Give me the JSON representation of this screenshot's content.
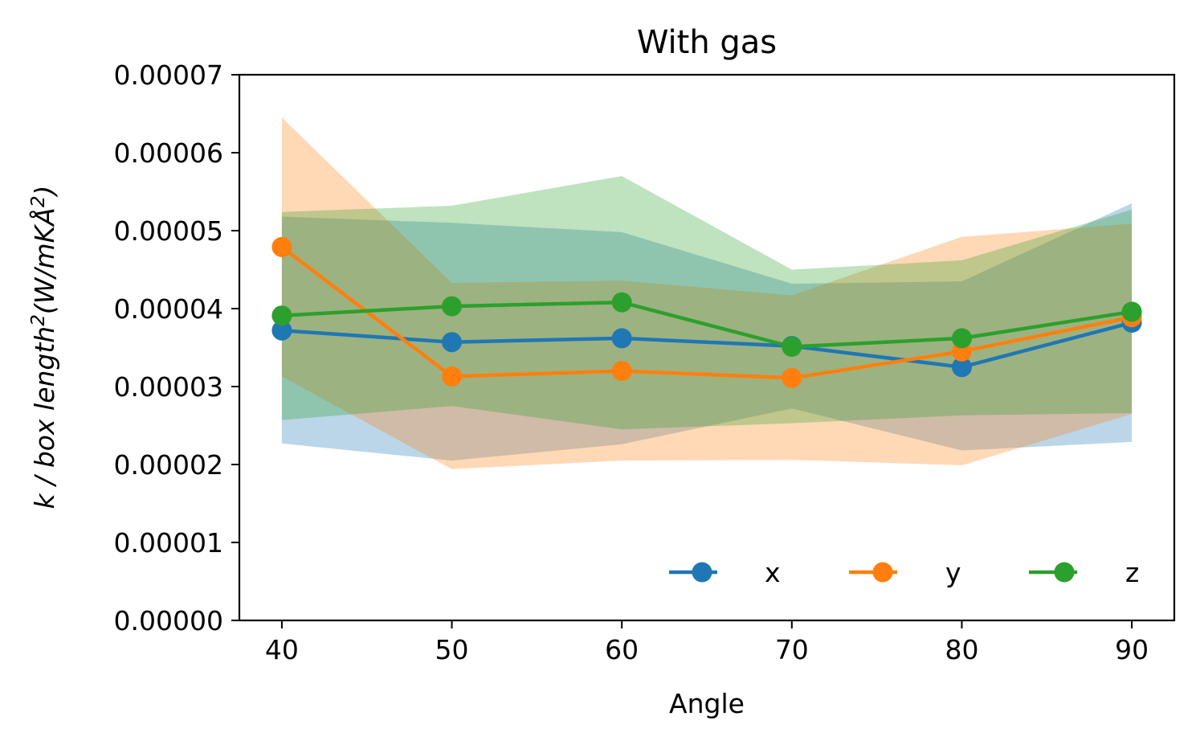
{
  "chart_data": {
    "type": "line",
    "title": "With gas",
    "xlabel": "Angle",
    "ylabel": "k / box length",
    "ylabel_superscript": "2",
    "ylabel_unit": "(W/mKÅ",
    "ylabel_unit_superscript": "2",
    "ylabel_unit_close": ")",
    "x": [
      40,
      50,
      60,
      70,
      80,
      90
    ],
    "xlim": [
      37.5,
      92.5
    ],
    "ylim": [
      0,
      7e-05
    ],
    "xticks": [
      40,
      50,
      60,
      70,
      80,
      90
    ],
    "yticks": [
      0,
      1e-05,
      2e-05,
      3e-05,
      4e-05,
      5e-05,
      6e-05,
      7e-05
    ],
    "ytick_labels": [
      "0.00000",
      "0.00001",
      "0.00002",
      "0.00003",
      "0.00004",
      "0.00005",
      "0.00006",
      "0.00007"
    ],
    "xtick_labels": [
      "40",
      "50",
      "60",
      "70",
      "80",
      "90"
    ],
    "grid": false,
    "legend_position": "lower-right",
    "legend_columns": 3,
    "series": [
      {
        "name": "x",
        "color": "#1f77b4",
        "values": [
          3.72e-05,
          3.57e-05,
          3.62e-05,
          3.52e-05,
          3.25e-05,
          3.82e-05
        ],
        "band_upper": [
          5.18e-05,
          5.1e-05,
          4.98e-05,
          4.32e-05,
          4.35e-05,
          5.35e-05
        ],
        "band_lower": [
          2.27e-05,
          2.05e-05,
          2.26e-05,
          2.72e-05,
          2.18e-05,
          2.29e-05
        ]
      },
      {
        "name": "y",
        "color": "#ff7f0e",
        "values": [
          4.79e-05,
          3.13e-05,
          3.2e-05,
          3.11e-05,
          3.45e-05,
          3.89e-05
        ],
        "band_upper": [
          6.45e-05,
          4.33e-05,
          4.36e-05,
          4.17e-05,
          4.92e-05,
          5.09e-05
        ],
        "band_lower": [
          3.13e-05,
          1.94e-05,
          2.05e-05,
          2.06e-05,
          1.99e-05,
          2.65e-05
        ]
      },
      {
        "name": "z",
        "color": "#2ca02c",
        "values": [
          3.91e-05,
          4.03e-05,
          4.08e-05,
          3.51e-05,
          3.62e-05,
          3.96e-05
        ],
        "band_upper": [
          5.24e-05,
          5.32e-05,
          5.7e-05,
          4.5e-05,
          4.62e-05,
          5.27e-05
        ],
        "band_lower": [
          2.57e-05,
          2.75e-05,
          2.45e-05,
          2.53e-05,
          2.63e-05,
          2.66e-05
        ]
      }
    ]
  }
}
